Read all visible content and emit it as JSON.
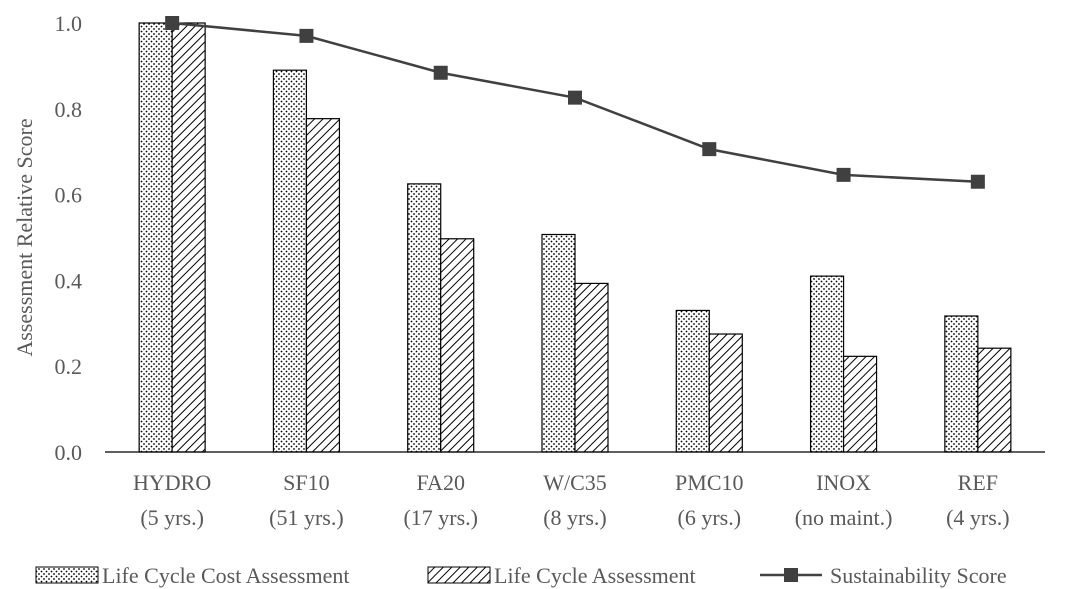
{
  "chart_data": {
    "type": "bar",
    "categories": [
      {
        "line1": "HYDRO",
        "line2": "(5 yrs.)"
      },
      {
        "line1": "SF10",
        "line2": "(51 yrs.)"
      },
      {
        "line1": "FA20",
        "line2": "(17 yrs.)"
      },
      {
        "line1": "W/C35",
        "line2": "(8 yrs.)"
      },
      {
        "line1": "PMC10",
        "line2": "(6 yrs.)"
      },
      {
        "line1": "INOX",
        "line2": "(no maint.)"
      },
      {
        "line1": "REF",
        "line2": "(4 yrs.)"
      }
    ],
    "series": [
      {
        "name": "Life Cycle Cost Assessment",
        "kind": "bar",
        "pattern": "dots",
        "values": [
          1.0,
          0.89,
          0.625,
          0.507,
          0.33,
          0.41,
          0.317
        ]
      },
      {
        "name": "Life Cycle Assessment",
        "kind": "bar",
        "pattern": "diagonal-hatch",
        "values": [
          1.0,
          0.777,
          0.497,
          0.393,
          0.275,
          0.223,
          0.242
        ]
      },
      {
        "name": "Sustainability Score",
        "kind": "line",
        "marker": "square",
        "values": [
          1.0,
          0.97,
          0.884,
          0.826,
          0.706,
          0.646,
          0.63
        ]
      }
    ],
    "ylabel": "Assessment Relative Score",
    "xlabel": "",
    "ylim": [
      0,
      1.0
    ],
    "yticks": [
      "0.0",
      "0.2",
      "0.4",
      "0.6",
      "0.8",
      "1.0"
    ],
    "grid": false,
    "legend_position": "bottom",
    "colors": {
      "bar_outline": "#000000",
      "line": "#404040",
      "marker": "#404040",
      "text": "#595959",
      "axis": "#000000"
    }
  }
}
